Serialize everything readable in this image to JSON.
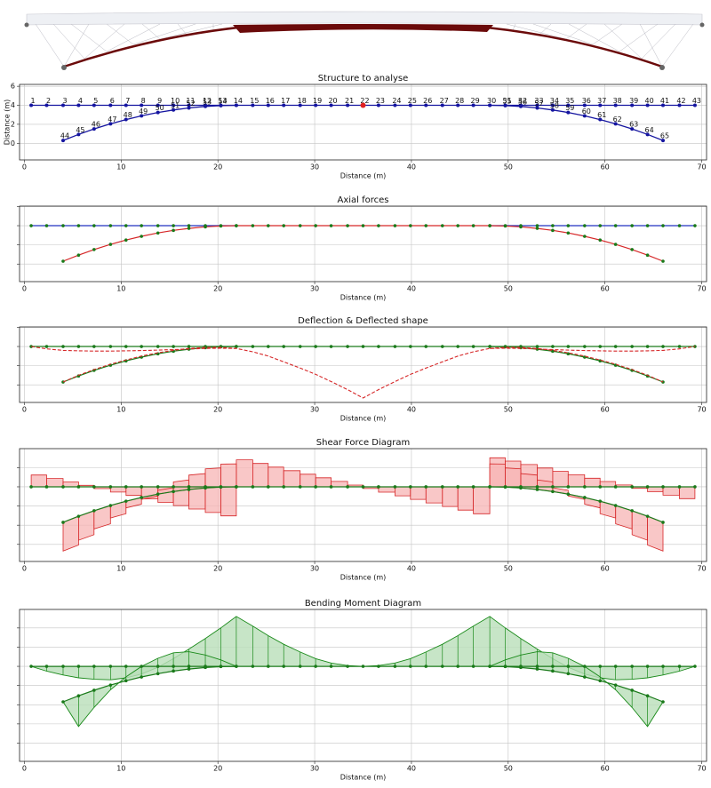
{
  "chart_data": [
    {
      "type": "structure",
      "title": "Structure to analyse",
      "xlabel": "Distance (m)",
      "ylabel": "Distance (m)",
      "xlim": [
        -0.5,
        70.5
      ],
      "ylim": [
        -1.75,
        6.2
      ],
      "xticks": [
        0,
        10,
        20,
        30,
        40,
        50,
        60,
        70
      ],
      "yticks": [
        6,
        4,
        2,
        0
      ],
      "show_ytick_labels": true,
      "grid": true,
      "line_color": "#1515a0",
      "node_color": "#1515a0",
      "nodes": {
        "deck": {
          "labels": [
            "1",
            "2",
            "3",
            "4",
            "5",
            "6",
            "7",
            "8",
            "9",
            "10",
            "11",
            "12",
            "13",
            "14",
            "15",
            "16",
            "17",
            "18",
            "19",
            "20",
            "21",
            "22",
            "23",
            "24",
            "25",
            "26",
            "27",
            "28",
            "29",
            "30",
            "31",
            "32",
            "33",
            "34",
            "35",
            "36",
            "37",
            "38",
            "39",
            "40",
            "41",
            "42",
            "43"
          ],
          "x": [
            0.7,
            2.3,
            4.0,
            5.6,
            7.2,
            8.9,
            10.5,
            12.1,
            13.8,
            15.4,
            17.0,
            18.7,
            20.3,
            21.9,
            23.6,
            25.2,
            26.8,
            28.5,
            30.1,
            31.7,
            33.4,
            35.0,
            36.6,
            38.3,
            39.9,
            41.5,
            43.2,
            44.8,
            46.4,
            48.1,
            49.7,
            51.3,
            53.0,
            54.6,
            56.2,
            57.9,
            59.5,
            61.1,
            62.8,
            64.4,
            66.0,
            67.7,
            69.3
          ],
          "y": [
            4,
            4,
            4,
            4,
            4,
            4,
            4,
            4,
            4,
            4,
            4,
            4,
            4,
            4,
            4,
            4,
            4,
            4,
            4,
            4,
            4,
            4,
            4,
            4,
            4,
            4,
            4,
            4,
            4,
            4,
            4,
            4,
            4,
            4,
            4,
            4,
            4,
            4,
            4,
            4,
            4,
            4,
            4
          ]
        },
        "left_cable": {
          "labels": [
            "44",
            "45",
            "46",
            "47",
            "48",
            "49",
            "50",
            "51",
            "52",
            "53",
            "54",
            null
          ],
          "x": [
            4.0,
            5.6,
            7.2,
            8.9,
            10.5,
            12.1,
            13.8,
            15.4,
            17.0,
            18.7,
            20.3,
            21.9
          ],
          "y": [
            0.3,
            0.93,
            1.51,
            2.05,
            2.5,
            2.89,
            3.24,
            3.51,
            3.72,
            3.88,
            3.97,
            4.0
          ]
        },
        "right_cable": {
          "labels": [
            null,
            "55",
            "56",
            "57",
            "58",
            "59",
            "60",
            "61",
            "62",
            "63",
            "64",
            "65"
          ],
          "x": [
            48.1,
            49.7,
            51.3,
            53.0,
            54.6,
            56.2,
            57.9,
            59.5,
            61.1,
            62.8,
            64.4,
            66.0
          ],
          "y": [
            4.0,
            3.97,
            3.88,
            3.72,
            3.51,
            3.24,
            2.89,
            2.5,
            2.05,
            1.51,
            0.93,
            0.3
          ]
        }
      },
      "load": {
        "x": 35.0,
        "y": 4,
        "color": "#e02020"
      }
    },
    {
      "type": "axial",
      "title": "Axial forces",
      "xlabel": "Distance (m)",
      "xlim": [
        -0.5,
        70.5
      ],
      "ylim": [
        -1.83,
        6.04
      ],
      "xticks": [
        0,
        10,
        20,
        30,
        40,
        50,
        60,
        70
      ],
      "yticks": [
        6,
        4,
        2,
        0
      ],
      "show_ytick_labels": false,
      "grid": true,
      "deck_color": "#2030c0",
      "inner_deck_color": "#d62728",
      "cable_color": "#d62728",
      "node_color": "#1a7a1a"
    },
    {
      "type": "deflection",
      "title": "Deflection & Deflected shape",
      "xlabel": "Distance (m)",
      "xlim": [
        -0.5,
        70.5
      ],
      "ylim": [
        -1.83,
        6.04
      ],
      "xticks": [
        0,
        10,
        20,
        30,
        40,
        50,
        60,
        70
      ],
      "yticks": [
        6,
        4,
        2,
        0
      ],
      "show_ytick_labels": false,
      "grid": true,
      "structure_color": "#1a7a1a",
      "color": "#d62728",
      "deck_values": [
        4.0,
        3.75,
        3.6,
        3.55,
        3.52,
        3.52,
        3.55,
        3.58,
        3.62,
        3.68,
        3.74,
        3.8,
        3.82,
        3.8,
        3.45,
        3.0,
        2.4,
        1.75,
        1.1,
        0.35,
        -0.5,
        -1.37,
        -0.5,
        0.35,
        1.1,
        1.75,
        2.4,
        3.0,
        3.45,
        3.8,
        3.82,
        3.8,
        3.74,
        3.68,
        3.62,
        3.58,
        3.55,
        3.52,
        3.52,
        3.55,
        3.6,
        3.75,
        4.0
      ],
      "left_cable_values": [
        0.3,
        1.0,
        1.6,
        2.15,
        2.6,
        3.0,
        3.35,
        3.6,
        3.8,
        3.9,
        3.9,
        3.8
      ],
      "right_cable_values": [
        3.8,
        3.9,
        3.9,
        3.8,
        3.6,
        3.35,
        3.0,
        2.6,
        2.15,
        1.6,
        1.0,
        0.3
      ]
    },
    {
      "type": "shear",
      "title": "Shear Force Diagram",
      "xlabel": "Distance (m)",
      "xlim": [
        -0.5,
        70.5
      ],
      "ylim": [
        -3.78,
        7.98
      ],
      "xticks": [
        0,
        10,
        20,
        30,
        40,
        50,
        60,
        70
      ],
      "yticks": [
        6,
        4,
        2,
        0,
        -2
      ],
      "show_ytick_labels": false,
      "grid": true,
      "structure_color": "#1a7a1a",
      "color": "#d62728",
      "fill": "#f7b4b4",
      "deck_values": [
        1.23,
        0.87,
        0.51,
        0.16,
        -0.19,
        -0.55,
        -0.9,
        -1.26,
        -1.62,
        -1.96,
        -2.32,
        -2.68,
        -3.03,
        2.81,
        2.43,
        2.05,
        1.68,
        1.31,
        0.94,
        0.56,
        0.18,
        -0.18,
        -0.56,
        -0.94,
        -1.31,
        -1.68,
        -2.05,
        -2.43,
        -2.81,
        3.03,
        2.68,
        2.32,
        1.96,
        1.62,
        1.26,
        0.9,
        0.55,
        0.19,
        -0.16,
        -0.51,
        -0.87,
        -1.23
      ],
      "left_cable_values": [
        -3.0,
        -2.5,
        -1.9,
        -1.3,
        -0.7,
        -0.2,
        0.4,
        1.0,
        1.5,
        2.0,
        2.4
      ],
      "right_cable_values": [
        2.4,
        2.0,
        1.5,
        1.0,
        0.4,
        -0.2,
        -0.7,
        -1.3,
        -1.9,
        -2.5,
        -3.0
      ]
    },
    {
      "type": "bending",
      "title": "Bending Moment Diagram",
      "xlabel": "Distance (m)",
      "xlim": [
        -0.5,
        70.5
      ],
      "ylim": [
        -5.9,
        9.93
      ],
      "xticks": [
        0,
        10,
        20,
        30,
        40,
        50,
        60,
        70
      ],
      "yticks": [
        8,
        6,
        4,
        2,
        0,
        -2,
        -4
      ],
      "show_ytick_labels": false,
      "grid": true,
      "structure_color": "#1a7a1a",
      "color": "#1a8a1a",
      "fill": "#b9dfb9",
      "deck_values": [
        0,
        -0.5,
        -0.9,
        -1.2,
        -1.35,
        -1.4,
        -1.2,
        -0.8,
        -0.1,
        0.8,
        1.8,
        2.9,
        4.0,
        5.2,
        4.2,
        3.2,
        2.3,
        1.5,
        0.8,
        0.35,
        0.08,
        0,
        0.08,
        0.35,
        0.8,
        1.5,
        2.3,
        3.2,
        4.2,
        5.2,
        4.0,
        2.9,
        1.8,
        0.8,
        -0.1,
        -0.8,
        -1.2,
        -1.4,
        -1.35,
        -1.2,
        -0.9,
        -0.5,
        0
      ],
      "left_cable_values": [
        0,
        -3.2,
        -1.8,
        -0.5,
        0.4,
        1.1,
        1.6,
        1.9,
        1.8,
        1.3,
        0.7,
        0
      ],
      "right_cable_values": [
        0,
        0.7,
        1.3,
        1.8,
        1.9,
        1.6,
        1.1,
        0.4,
        -0.5,
        -1.8,
        -3.2,
        0
      ]
    }
  ]
}
